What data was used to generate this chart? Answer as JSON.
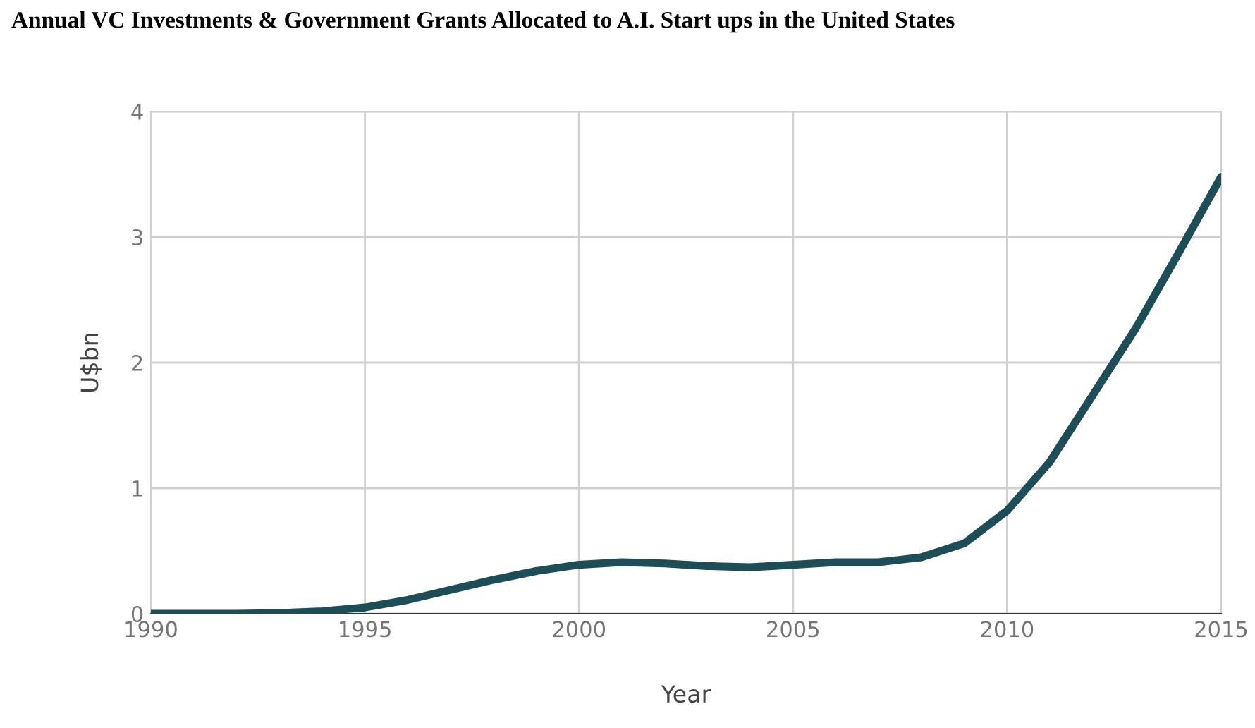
{
  "chart_data": {
    "type": "line",
    "title": "Annual VC Investments & Government Grants Allocated to A.I. Start ups in the United States",
    "xlabel": "Year",
    "ylabel": "U$bn",
    "x": [
      1990,
      1991,
      1992,
      1993,
      1994,
      1995,
      1996,
      1997,
      1998,
      1999,
      2000,
      2001,
      2002,
      2003,
      2004,
      2005,
      2006,
      2007,
      2008,
      2009,
      2010,
      2011,
      2012,
      2013,
      2014,
      2015
    ],
    "series": [
      {
        "color": "#1d4e57",
        "values": [
          0,
          0,
          0,
          0.005,
          0.02,
          0.05,
          0.11,
          0.19,
          0.27,
          0.34,
          0.39,
          0.41,
          0.4,
          0.38,
          0.37,
          0.39,
          0.41,
          0.41,
          0.45,
          0.56,
          0.82,
          1.21,
          1.74,
          2.27,
          2.87,
          3.48
        ]
      }
    ],
    "xlim": [
      1990,
      2015
    ],
    "xticks": [
      1990,
      1995,
      2000,
      2005,
      2010,
      2015
    ],
    "ylim": [
      0,
      4
    ],
    "yticks": [
      0,
      1,
      2,
      3,
      4
    ],
    "grid": true,
    "marker": "none",
    "line_style": "solid"
  }
}
